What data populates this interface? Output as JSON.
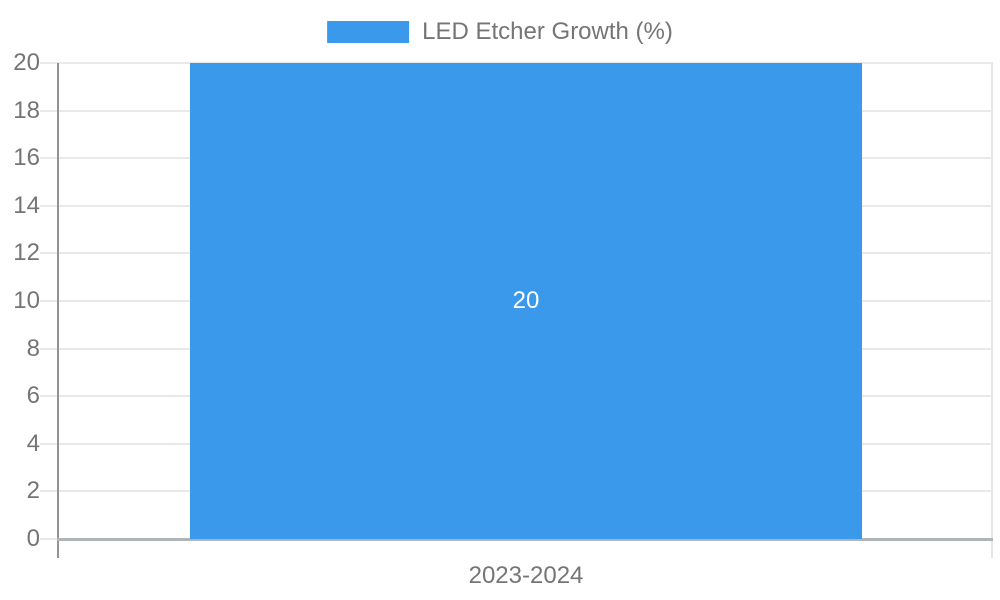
{
  "chart_data": {
    "type": "bar",
    "title": "",
    "categories": [
      "2023-2024"
    ],
    "series": [
      {
        "name": "LED Etcher Growth (%)",
        "values": [
          20
        ],
        "color": "#3b99ec"
      }
    ],
    "xlabel": "",
    "ylabel": "",
    "ylim": [
      0,
      20
    ],
    "yticks": [
      0,
      2,
      4,
      6,
      8,
      10,
      12,
      14,
      16,
      18,
      20
    ],
    "grid": true,
    "legend_position": "top-center",
    "data_labels": [
      20
    ],
    "data_label_color": "#ffffff"
  },
  "colors": {
    "bar": "#3b99ec",
    "gridline": "#e9e9e9",
    "y_axis_line": "#949494",
    "baseline": "#b0b3b7",
    "tick_text": "#757575",
    "background": "#ffffff"
  }
}
